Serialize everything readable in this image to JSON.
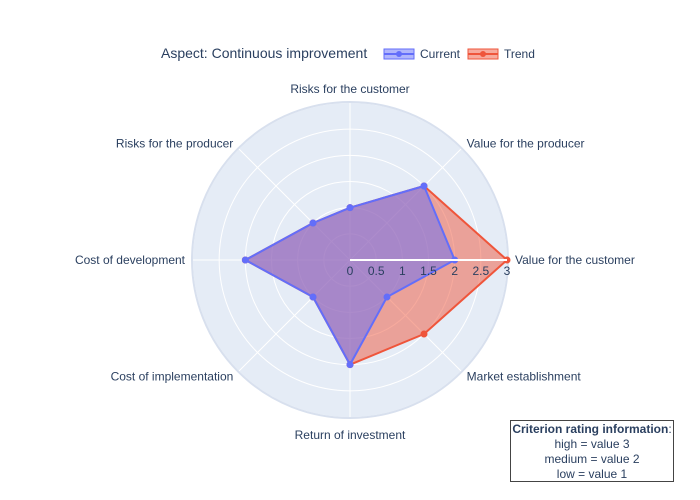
{
  "chart_data": {
    "type": "radar",
    "title": "Aspect: Continuous improvement",
    "categories": [
      "Value for the customer",
      "Value for the producer",
      "Risks for the customer",
      "Risks for the producer",
      "Cost of development",
      "Cost of implementation",
      "Return of investment",
      "Market establishment"
    ],
    "series": [
      {
        "name": "Current",
        "values": [
          2,
          2,
          1,
          1,
          2,
          1,
          2,
          1
        ],
        "color": "#636efa"
      },
      {
        "name": "Trend",
        "values": [
          3,
          2,
          1,
          1,
          2,
          1,
          2,
          2
        ],
        "color": "#ef553b"
      }
    ],
    "radial_range": [
      0,
      3
    ],
    "radial_ticks": [
      "0",
      "0.5",
      "1",
      "1.5",
      "2",
      "2.5",
      "3"
    ],
    "legend_position": "top",
    "background_color": "#e5ecf6",
    "grid": true
  },
  "info_box": {
    "title": "Criterion rating information",
    "colon": ":",
    "lines": [
      "high = value 3",
      "medium = value 2",
      "low = value 1"
    ]
  }
}
